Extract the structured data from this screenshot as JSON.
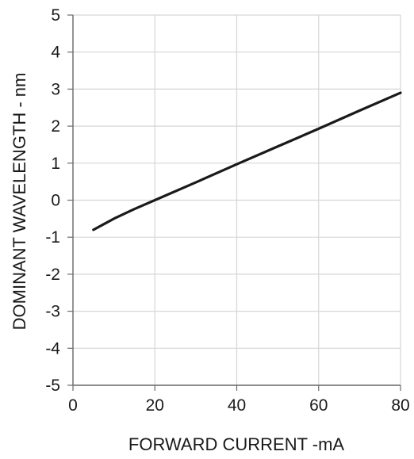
{
  "chart_data": {
    "type": "line",
    "title": "",
    "xlabel": "FORWARD CURRENT -mA",
    "ylabel": "DOMINANT WAVELENGTH - nm",
    "xlim": [
      0,
      80
    ],
    "ylim": [
      -5,
      5
    ],
    "xticks": [
      0,
      20,
      40,
      60,
      80
    ],
    "yticks": [
      5,
      4,
      3,
      2,
      1,
      0,
      -1,
      -2,
      -3,
      -4,
      -5
    ],
    "grid": true,
    "series": [
      {
        "color": "#1a1a1a",
        "x": [
          5,
          10,
          15,
          20,
          30,
          40,
          50,
          60,
          70,
          80
        ],
        "y": [
          -0.8,
          -0.5,
          -0.24,
          0.0,
          0.48,
          0.97,
          1.45,
          1.93,
          2.42,
          2.9
        ]
      }
    ]
  }
}
